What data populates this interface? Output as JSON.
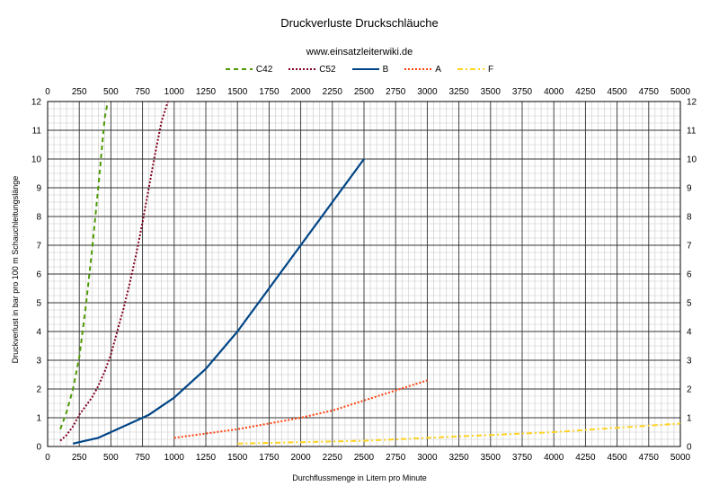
{
  "chart_data": {
    "type": "line",
    "title": "Druckverluste Druckschläuche",
    "subtitle": "www.einsatzleiterwiki.de",
    "xlabel": "Durchflussmenge in Litern pro Minute",
    "ylabel": "Druckverlust in bar pro 100 m Schauchleitungslänge",
    "xlim": [
      0,
      5000
    ],
    "ylim": [
      0,
      12
    ],
    "x_ticks": [
      0,
      250,
      500,
      750,
      1000,
      1250,
      1500,
      1750,
      2000,
      2250,
      2500,
      2750,
      3000,
      3250,
      3500,
      3750,
      4000,
      4250,
      4500,
      4750,
      5000
    ],
    "y_ticks": [
      0,
      1,
      2,
      3,
      4,
      5,
      6,
      7,
      8,
      9,
      10,
      11,
      12
    ],
    "grid": true,
    "legend_position": "top",
    "series": [
      {
        "name": "C42",
        "color": "#4e9a06",
        "dash": "5,4",
        "x": [
          100,
          150,
          200,
          250,
          300,
          350,
          400,
          450,
          475
        ],
        "y": [
          0.6,
          1.2,
          2.0,
          3.1,
          4.8,
          6.8,
          9.0,
          11.4,
          12.0
        ]
      },
      {
        "name": "C52",
        "color": "#800020",
        "dash": "2,2",
        "x": [
          100,
          150,
          200,
          250,
          300,
          350,
          400,
          450,
          500,
          550,
          600,
          650,
          700,
          750,
          800,
          850,
          900,
          950
        ],
        "y": [
          0.2,
          0.4,
          0.7,
          1.1,
          1.4,
          1.7,
          2.1,
          2.6,
          3.2,
          4.0,
          4.8,
          5.7,
          6.7,
          7.8,
          9.0,
          10.2,
          11.3,
          12.0
        ]
      },
      {
        "name": "B",
        "color": "#004586",
        "dash": "",
        "x": [
          200,
          300,
          400,
          500,
          600,
          700,
          800,
          900,
          1000,
          1250,
          1500,
          1750,
          2000,
          2250,
          2500
        ],
        "y": [
          0.1,
          0.2,
          0.3,
          0.5,
          0.7,
          0.9,
          1.1,
          1.4,
          1.7,
          2.7,
          4.0,
          5.5,
          7.0,
          8.5,
          10.0
        ]
      },
      {
        "name": "A",
        "color": "#ff420e",
        "dash": "2,2",
        "x": [
          1000,
          1250,
          1500,
          1750,
          2000,
          2250,
          2500,
          2750,
          3000
        ],
        "y": [
          0.3,
          0.45,
          0.6,
          0.8,
          1.0,
          1.25,
          1.6,
          1.95,
          2.3
        ]
      },
      {
        "name": "F",
        "color": "#ffd320",
        "dash": "6,3,2,3",
        "x": [
          1500,
          2000,
          2500,
          3000,
          3500,
          4000,
          4500,
          5000
        ],
        "y": [
          0.1,
          0.15,
          0.2,
          0.3,
          0.4,
          0.5,
          0.65,
          0.8
        ]
      }
    ]
  }
}
